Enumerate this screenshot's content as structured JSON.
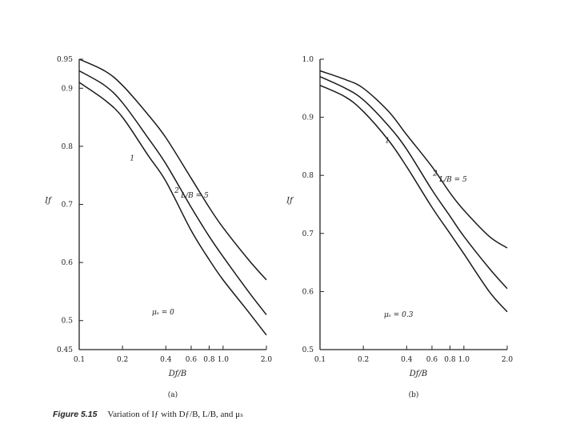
{
  "caption": {
    "figure_label": "Figure 5.15",
    "text": "Variation of Iƒ with Dƒ/B, L/B, and μₛ"
  },
  "chart_data": [
    {
      "type": "line",
      "panel_label": "(a)",
      "xlabel": "Dƒ/B",
      "ylabel": "Iƒ",
      "annotation": "μₛ = 0",
      "x_scale": "log",
      "xlim": [
        0.1,
        2.0
      ],
      "ylim": [
        0.45,
        0.95
      ],
      "x_ticks": [
        {
          "value": 0.1,
          "label": "0.1"
        },
        {
          "value": 0.2,
          "label": "0.2"
        },
        {
          "value": 0.4,
          "label": "0.4"
        },
        {
          "value": 0.6,
          "label": "0.6"
        },
        {
          "value": 0.8,
          "label": "0.8"
        },
        {
          "value": 1.0,
          "label": "1.0"
        },
        {
          "value": 2.0,
          "label": "2.0"
        }
      ],
      "y_ticks": [
        {
          "value": 0.45,
          "label": "0.45"
        },
        {
          "value": 0.5,
          "label": "0.5"
        },
        {
          "value": 0.6,
          "label": "0.6"
        },
        {
          "value": 0.7,
          "label": "0.7"
        },
        {
          "value": 0.8,
          "label": "0.8"
        },
        {
          "value": 0.9,
          "label": "0.9"
        },
        {
          "value": 0.95,
          "label": "0.95"
        }
      ],
      "series": [
        {
          "name": "L/B = 5",
          "x": [
            0.1,
            0.15,
            0.2,
            0.3,
            0.4,
            0.6,
            0.8,
            1.0,
            1.5,
            2.0
          ],
          "y": [
            0.95,
            0.93,
            0.905,
            0.855,
            0.815,
            0.745,
            0.695,
            0.66,
            0.605,
            0.57
          ]
        },
        {
          "name": "2",
          "x": [
            0.1,
            0.15,
            0.2,
            0.3,
            0.4,
            0.6,
            0.8,
            1.0,
            1.5,
            2.0
          ],
          "y": [
            0.93,
            0.905,
            0.875,
            0.815,
            0.77,
            0.695,
            0.645,
            0.61,
            0.55,
            0.51
          ]
        },
        {
          "name": "1",
          "x": [
            0.1,
            0.15,
            0.2,
            0.3,
            0.4,
            0.6,
            0.8,
            1.0,
            1.5,
            2.0
          ],
          "y": [
            0.91,
            0.88,
            0.85,
            0.785,
            0.74,
            0.655,
            0.605,
            0.57,
            0.515,
            0.475
          ]
        }
      ]
    },
    {
      "type": "line",
      "panel_label": "(b)",
      "xlabel": "Dƒ/B",
      "ylabel": "Iƒ",
      "annotation": "μₛ = 0.3",
      "x_scale": "log",
      "xlim": [
        0.1,
        2.0
      ],
      "ylim": [
        0.5,
        1.0
      ],
      "x_ticks": [
        {
          "value": 0.1,
          "label": "0.1"
        },
        {
          "value": 0.2,
          "label": "0.2"
        },
        {
          "value": 0.4,
          "label": "0.4"
        },
        {
          "value": 0.6,
          "label": "0.6"
        },
        {
          "value": 0.8,
          "label": "0.8"
        },
        {
          "value": 1.0,
          "label": "1.0"
        },
        {
          "value": 2.0,
          "label": "2.0"
        }
      ],
      "y_ticks": [
        {
          "value": 0.5,
          "label": "0.5"
        },
        {
          "value": 0.6,
          "label": "0.6"
        },
        {
          "value": 0.7,
          "label": "0.7"
        },
        {
          "value": 0.8,
          "label": "0.8"
        },
        {
          "value": 0.9,
          "label": "0.9"
        },
        {
          "value": 1.0,
          "label": "1.0"
        }
      ],
      "series": [
        {
          "name": "L/B = 5",
          "x": [
            0.1,
            0.15,
            0.2,
            0.3,
            0.4,
            0.6,
            0.8,
            1.0,
            1.5,
            2.0
          ],
          "y": [
            0.98,
            0.965,
            0.95,
            0.91,
            0.87,
            0.815,
            0.77,
            0.74,
            0.695,
            0.675
          ]
        },
        {
          "name": "2",
          "x": [
            0.1,
            0.15,
            0.2,
            0.3,
            0.4,
            0.6,
            0.8,
            1.0,
            1.5,
            2.0
          ],
          "y": [
            0.97,
            0.95,
            0.93,
            0.885,
            0.845,
            0.775,
            0.73,
            0.695,
            0.64,
            0.605
          ]
        },
        {
          "name": "1",
          "x": [
            0.1,
            0.15,
            0.2,
            0.3,
            0.4,
            0.6,
            0.8,
            1.0,
            1.5,
            2.0
          ],
          "y": [
            0.955,
            0.935,
            0.91,
            0.86,
            0.815,
            0.745,
            0.7,
            0.665,
            0.6,
            0.565
          ]
        }
      ]
    }
  ]
}
